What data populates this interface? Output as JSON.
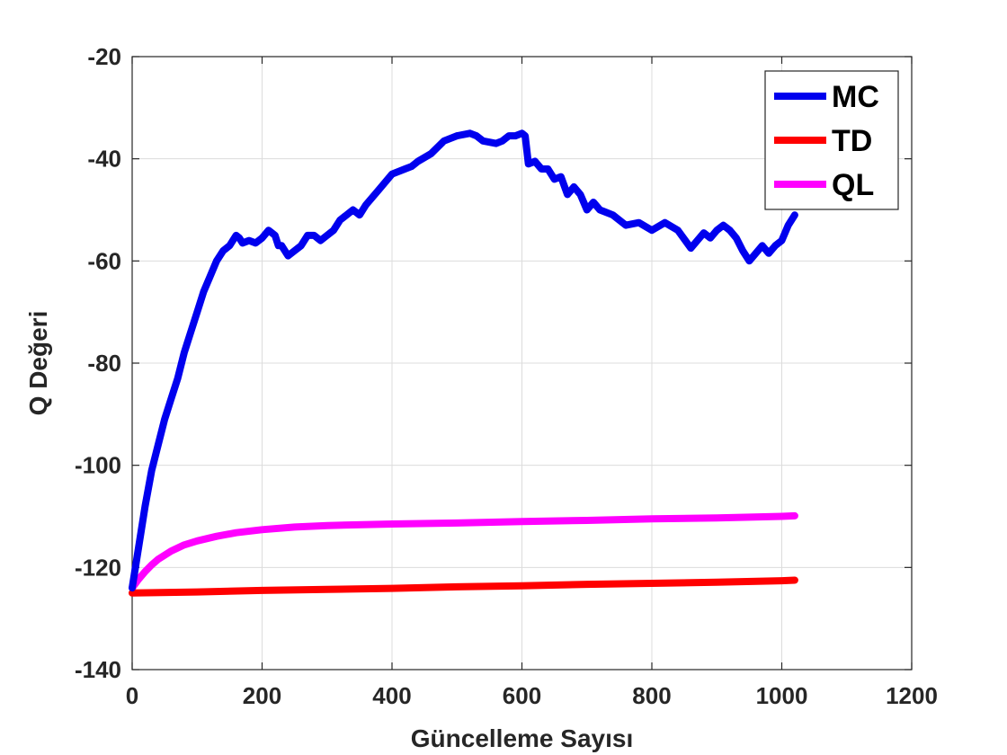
{
  "chart_data": {
    "type": "line",
    "title": "",
    "xlabel": "Güncelleme Sayısı",
    "ylabel": "Q Değeri",
    "xlim": [
      0,
      1200
    ],
    "ylim": [
      -140,
      -20
    ],
    "xticks": [
      0,
      200,
      400,
      600,
      800,
      1000,
      1200
    ],
    "yticks": [
      -140,
      -120,
      -100,
      -80,
      -60,
      -40,
      -20
    ],
    "grid": true,
    "legend_position": "top-right",
    "series": [
      {
        "name": "MC",
        "color": "#0000ee",
        "x": [
          0,
          10,
          20,
          30,
          40,
          50,
          60,
          70,
          80,
          90,
          100,
          110,
          120,
          130,
          140,
          150,
          160,
          165,
          170,
          180,
          190,
          200,
          210,
          220,
          225,
          230,
          240,
          250,
          260,
          270,
          280,
          290,
          300,
          310,
          320,
          330,
          340,
          350,
          360,
          380,
          400,
          420,
          430,
          440,
          460,
          480,
          500,
          520,
          530,
          540,
          560,
          570,
          580,
          590,
          600,
          605,
          610,
          620,
          630,
          640,
          650,
          660,
          670,
          680,
          690,
          700,
          710,
          720,
          740,
          760,
          780,
          800,
          820,
          840,
          860,
          870,
          880,
          890,
          900,
          910,
          920,
          930,
          940,
          950,
          960,
          970,
          980,
          990,
          1000,
          1010,
          1020
        ],
        "y": [
          -124,
          -116,
          -108,
          -101,
          -96,
          -91,
          -87,
          -83,
          -78,
          -74,
          -70,
          -66,
          -63,
          -60,
          -58,
          -57,
          -55,
          -55.5,
          -56.5,
          -56,
          -56.5,
          -55.5,
          -54,
          -55,
          -57,
          -57,
          -59,
          -58,
          -57,
          -55,
          -55,
          -56,
          -55,
          -54,
          -52,
          -51,
          -50,
          -51,
          -49,
          -46,
          -43,
          -42,
          -41.5,
          -40.5,
          -39,
          -36.5,
          -35.5,
          -35,
          -35.5,
          -36.5,
          -37,
          -36.5,
          -35.5,
          -35.5,
          -35,
          -35.5,
          -41,
          -40.5,
          -42,
          -42,
          -44,
          -43.5,
          -47,
          -45.5,
          -47,
          -50,
          -48.5,
          -50,
          -51,
          -53,
          -52.5,
          -54,
          -52.5,
          -54,
          -57.5,
          -56,
          -54.5,
          -55.5,
          -54,
          -53,
          -54,
          -55.5,
          -58,
          -60,
          -58.5,
          -57,
          -58.5,
          -57,
          -56,
          -53,
          -51
        ]
      },
      {
        "name": "TD",
        "color": "#ff0000",
        "x": [
          0,
          100,
          200,
          300,
          400,
          500,
          600,
          700,
          800,
          900,
          1000,
          1020
        ],
        "y": [
          -125,
          -124.8,
          -124.5,
          -124.3,
          -124.1,
          -123.8,
          -123.6,
          -123.3,
          -123.1,
          -122.9,
          -122.6,
          -122.5
        ]
      },
      {
        "name": "QL",
        "color": "#ff00ff",
        "x": [
          0,
          10,
          20,
          30,
          40,
          60,
          80,
          100,
          130,
          160,
          200,
          250,
          300,
          400,
          500,
          600,
          700,
          800,
          900,
          1000,
          1020
        ],
        "y": [
          -124,
          -122.3,
          -120.8,
          -119.5,
          -118.4,
          -116.8,
          -115.6,
          -114.8,
          -113.9,
          -113.2,
          -112.6,
          -112.1,
          -111.8,
          -111.5,
          -111.3,
          -111.0,
          -110.8,
          -110.5,
          -110.3,
          -110.0,
          -109.9
        ]
      }
    ]
  }
}
